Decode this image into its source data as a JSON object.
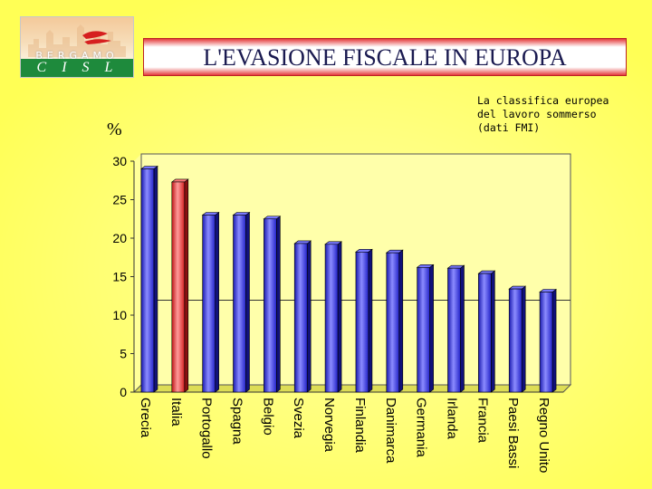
{
  "logo": {
    "top_text": "BERGAMO",
    "bottom_text": "CISL"
  },
  "colors": {
    "background": "#ffff66",
    "bar_blue": "#3333ff",
    "bar_red": "#ff3333",
    "plot_area": "#ffffaa"
  },
  "chart_data": {
    "type": "bar",
    "title": "L'EVASIONE FISCALE IN EUROPA",
    "subtitle": [
      "La classifica europea",
      "del lavoro sommerso",
      "(dati FMI)"
    ],
    "ylabel": "%",
    "xlabel": "",
    "ylim": [
      0,
      30
    ],
    "yticks": [
      "0",
      "5",
      "10",
      "15",
      "20",
      "25",
      "30"
    ],
    "categories": [
      "Grecia",
      "Italia",
      "Portogallo",
      "Spagna",
      "Belgio",
      "Svezia",
      "Norvegia",
      "Finlandia",
      "Danimarca",
      "Germania",
      "Irlanda",
      "Francia",
      "Paesi Bassi",
      "Regno Unito"
    ],
    "values": [
      29,
      27.3,
      23,
      23,
      22.5,
      19.3,
      19.2,
      18.2,
      18.1,
      16.2,
      16.1,
      15.4,
      13.4,
      13
    ],
    "highlight": "Italia",
    "reference_line": 11
  }
}
